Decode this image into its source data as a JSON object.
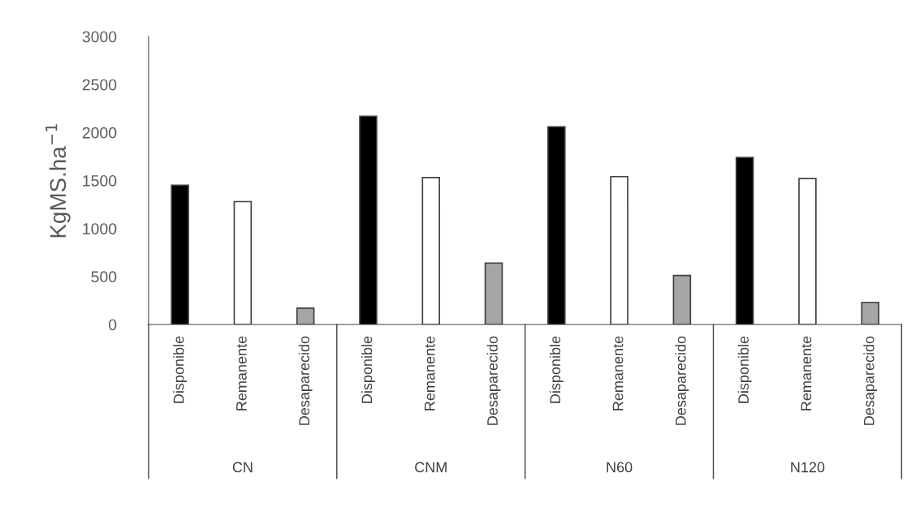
{
  "chart_data": {
    "type": "bar",
    "ylabel": "KgMS.ha$^{−1}$",
    "categories": [
      "Disponible",
      "Remanente",
      "Desaparecido",
      "Disponible",
      "Remanente",
      "Desaparecido",
      "Disponible",
      "Remanente",
      "Desaparecido",
      "Disponible",
      "Remanente",
      "Desaparecido"
    ],
    "values": [
      1450,
      1280,
      170,
      2170,
      1530,
      640,
      2060,
      1540,
      510,
      1740,
      1520,
      230
    ],
    "colors": [
      "#000000",
      "#ffffff",
      "#a6a6a6",
      "#000000",
      "#ffffff",
      "#a6a6a6",
      "#000000",
      "#ffffff",
      "#a6a6a6",
      "#000000",
      "#ffffff",
      "#a6a6a6"
    ],
    "ylim": [
      0,
      3000
    ],
    "yticks": [
      0,
      500,
      1000,
      1500,
      2000,
      2500,
      3000
    ],
    "annotations": [
      "CN",
      "CNM",
      "N60",
      "N120"
    ],
    "grid": false,
    "legend": false
  }
}
